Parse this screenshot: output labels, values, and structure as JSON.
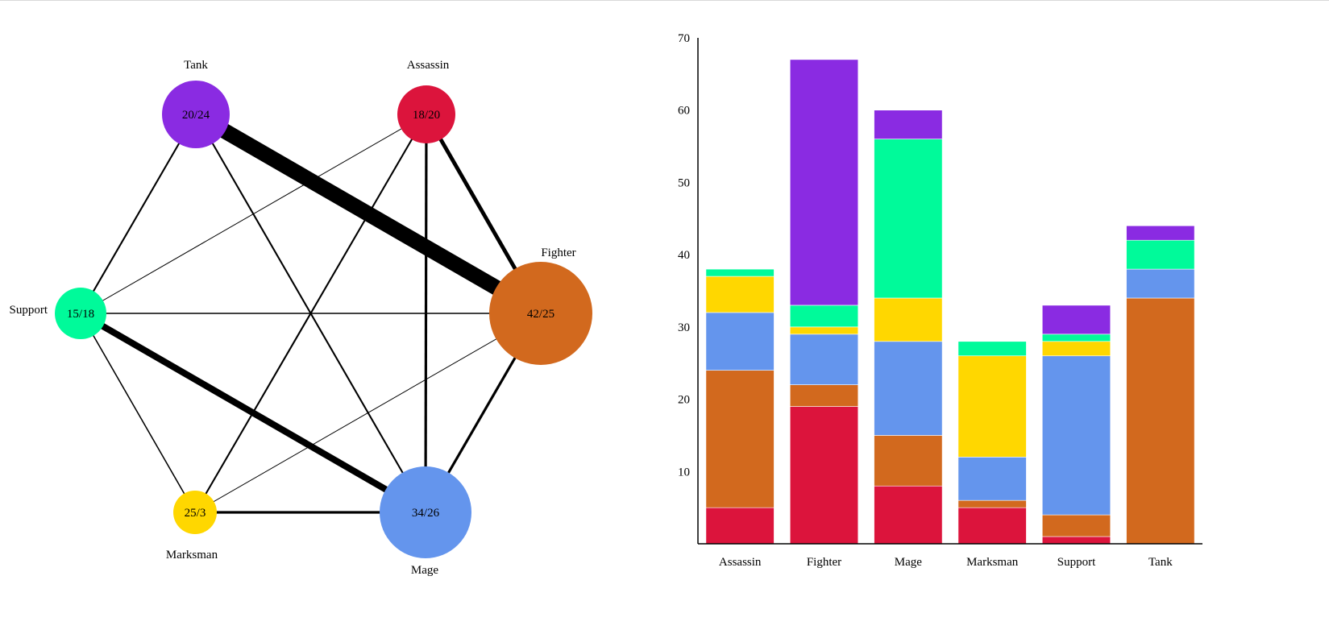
{
  "colors": {
    "Assassin": "#dc143c",
    "Fighter": "#d2691e",
    "Mage": "#6495ed",
    "Marksman": "#ffd700",
    "Support": "#00fa9a",
    "Tank": "#8a2be2"
  },
  "chart_data": [
    {
      "type": "network",
      "nodes": [
        {
          "id": "Tank",
          "label": "Tank",
          "value": "20/24",
          "color": "#8a2be2"
        },
        {
          "id": "Assassin",
          "label": "Assassin",
          "value": "18/20",
          "color": "#dc143c"
        },
        {
          "id": "Fighter",
          "label": "Fighter",
          "value": "42/25",
          "color": "#d2691e"
        },
        {
          "id": "Mage",
          "label": "Mage",
          "value": "34/26",
          "color": "#6495ed"
        },
        {
          "id": "Marksman",
          "label": "Marksman",
          "value": "25/3",
          "color": "#ffd700"
        },
        {
          "id": "Support",
          "label": "Support",
          "value": "15/18",
          "color": "#00fa9a"
        }
      ],
      "edges": [
        {
          "source": "Tank",
          "target": "Fighter",
          "weight": 34
        },
        {
          "source": "Tank",
          "target": "Support",
          "weight": 3
        },
        {
          "source": "Tank",
          "target": "Mage",
          "weight": 3
        },
        {
          "source": "Assassin",
          "target": "Fighter",
          "weight": 8
        },
        {
          "source": "Assassin",
          "target": "Mage",
          "weight": 5
        },
        {
          "source": "Assassin",
          "target": "Marksman",
          "weight": 3
        },
        {
          "source": "Assassin",
          "target": "Support",
          "weight": 1
        },
        {
          "source": "Support",
          "target": "Fighter",
          "weight": 2
        },
        {
          "source": "Support",
          "target": "Mage",
          "weight": 14
        },
        {
          "source": "Support",
          "target": "Marksman",
          "weight": 2
        },
        {
          "source": "Fighter",
          "target": "Mage",
          "weight": 5
        },
        {
          "source": "Fighter",
          "target": "Marksman",
          "weight": 1
        },
        {
          "source": "Marksman",
          "target": "Mage",
          "weight": 5
        }
      ]
    },
    {
      "type": "bar",
      "stacked": true,
      "categories": [
        "Assassin",
        "Fighter",
        "Mage",
        "Marksman",
        "Support",
        "Tank"
      ],
      "series": [
        {
          "color": "#dc143c",
          "values": [
            5,
            19,
            8,
            5,
            1,
            0
          ]
        },
        {
          "color": "#d2691e",
          "values": [
            19,
            3,
            7,
            1,
            3,
            34
          ]
        },
        {
          "color": "#6495ed",
          "values": [
            8,
            7,
            13,
            6,
            22,
            4
          ]
        },
        {
          "color": "#ffd700",
          "values": [
            5,
            1,
            6,
            14,
            2,
            0
          ]
        },
        {
          "color": "#00fa9a",
          "values": [
            1,
            3,
            22,
            2,
            1,
            4
          ]
        },
        {
          "color": "#8a2be2",
          "values": [
            0,
            34,
            4,
            0,
            4,
            2
          ]
        }
      ],
      "yticks": [
        10,
        20,
        30,
        40,
        50,
        60,
        70
      ],
      "ylim": [
        0,
        70
      ],
      "grid": false,
      "legend": "none"
    }
  ]
}
